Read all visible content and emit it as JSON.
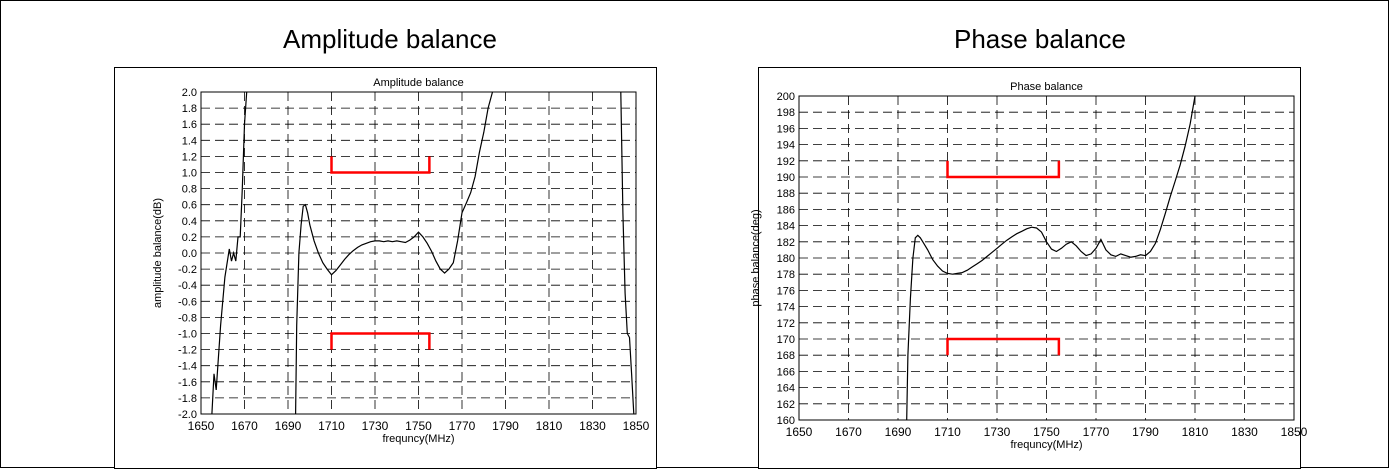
{
  "page": {
    "titles": [
      "Amplitude balance",
      "Phase balance"
    ]
  },
  "chart_data": [
    {
      "type": "line",
      "title": "Amplitude balance",
      "xlabel": "frequncy(MHz)",
      "ylabel": "amplitude balance(dB)",
      "xlim": [
        1650,
        1850
      ],
      "ylim": [
        -2.0,
        2.0
      ],
      "x_ticks": [
        1650,
        1670,
        1690,
        1710,
        1730,
        1750,
        1770,
        1790,
        1810,
        1830,
        1850
      ],
      "x_tick_labels": [
        "1650",
        "1670",
        "1690",
        "1710",
        "1730",
        "1750",
        "1770",
        "1790",
        "1810",
        "1830",
        "1850"
      ],
      "y_ticks": [
        2.0,
        1.8,
        1.6,
        1.4,
        1.2,
        1.0,
        0.8,
        0.6,
        0.4,
        0.2,
        0.0,
        -0.2,
        -0.4,
        -0.6,
        -0.8,
        -1.0,
        -1.2,
        -1.4,
        -1.6,
        -1.8,
        -2.0
      ],
      "y_tick_labels": [
        "2.0",
        "1.8",
        "1.6",
        "1.4",
        "1.2",
        "1.0",
        "0.8",
        "0.6",
        "0.4",
        "0.2",
        "0.0",
        "-0.2",
        "-0.4",
        "-0.6",
        "-0.8",
        "-1.0",
        "-1.2",
        "-1.4",
        "-1.6",
        "-1.8",
        "-2.0"
      ],
      "grid": true,
      "series": [
        {
          "color": "#000000",
          "segments": [
            {
              "x": [
                1655,
                1656,
                1657,
                1659,
                1661,
                1663,
                1664,
                1665,
                1666,
                1667,
                1668,
                1669,
                1670,
                1671
              ],
              "y": [
                -2.0,
                -1.5,
                -1.7,
                -0.9,
                -0.3,
                0.05,
                -0.1,
                0.0,
                -0.1,
                0.2,
                0.2,
                0.8,
                1.6,
                2.0
              ]
            },
            {
              "x": [
                1693.5,
                1694,
                1695,
                1696,
                1697,
                1698,
                1699,
                1700,
                1702,
                1704,
                1706,
                1708,
                1710,
                1712,
                1714,
                1716,
                1718,
                1720,
                1722,
                1724,
                1726,
                1728,
                1730,
                1732,
                1734,
                1736,
                1738,
                1740,
                1742,
                1744,
                1746,
                1748,
                1750,
                1752,
                1754,
                1756,
                1758,
                1760,
                1762,
                1764,
                1766,
                1768,
                1770,
                1772,
                1774,
                1776,
                1778,
                1780,
                1782,
                1784
              ],
              "y": [
                -2.0,
                -0.9,
                0.0,
                0.35,
                0.58,
                0.6,
                0.5,
                0.35,
                0.15,
                0.0,
                -0.12,
                -0.2,
                -0.27,
                -0.22,
                -0.15,
                -0.08,
                -0.02,
                0.03,
                0.07,
                0.1,
                0.12,
                0.14,
                0.15,
                0.15,
                0.14,
                0.15,
                0.14,
                0.15,
                0.14,
                0.13,
                0.16,
                0.2,
                0.26,
                0.2,
                0.12,
                0.02,
                -0.1,
                -0.2,
                -0.25,
                -0.2,
                -0.12,
                0.15,
                0.5,
                0.62,
                0.75,
                0.95,
                1.25,
                1.5,
                1.8,
                2.0
              ]
            },
            {
              "x": [
                1843,
                1844,
                1845,
                1846,
                1847,
                1848,
                1849
              ],
              "y": [
                2.0,
                0.5,
                -0.5,
                -1.0,
                -1.05,
                -1.5,
                -2.0
              ]
            }
          ]
        }
      ],
      "annotations": [
        {
          "type": "spec-limit",
          "color": "#ff0000",
          "x": [
            1710,
            1755
          ],
          "y": 1.0,
          "tick_to": 1.2
        },
        {
          "type": "spec-limit",
          "color": "#ff0000",
          "x": [
            1710,
            1755
          ],
          "y": -1.0,
          "tick_to": -1.2
        }
      ],
      "colors": {
        "spec": "#ff0000",
        "line": "#000000"
      }
    },
    {
      "type": "line",
      "title": "Phase balance",
      "xlabel": "frequncy(MHz)",
      "ylabel": "phase balance(deg)",
      "xlim": [
        1650,
        1850
      ],
      "ylim": [
        160,
        200
      ],
      "x_ticks": [
        1650,
        1670,
        1690,
        1710,
        1730,
        1750,
        1770,
        1790,
        1810,
        1830,
        1850
      ],
      "x_tick_labels": [
        "1650",
        "1670",
        "1690",
        "1710",
        "1730",
        "1750",
        "1770",
        "1790",
        "1810",
        "1830",
        "1850"
      ],
      "y_ticks": [
        200,
        198,
        196,
        194,
        192,
        190,
        188,
        186,
        184,
        182,
        180,
        178,
        176,
        174,
        172,
        170,
        168,
        166,
        164,
        162,
        160
      ],
      "y_tick_labels": [
        "200",
        "198",
        "196",
        "194",
        "192",
        "190",
        "188",
        "186",
        "184",
        "182",
        "180",
        "178",
        "176",
        "174",
        "172",
        "170",
        "168",
        "166",
        "164",
        "162",
        "160"
      ],
      "grid": true,
      "series": [
        {
          "color": "#000000",
          "segments": [
            {
              "x": [
                1693.5,
                1694,
                1695,
                1696,
                1697,
                1698,
                1699,
                1700,
                1702,
                1704,
                1706,
                1708,
                1710,
                1712,
                1714,
                1716,
                1718,
                1720,
                1722,
                1724,
                1726,
                1728,
                1730,
                1732,
                1734,
                1736,
                1738,
                1740,
                1742,
                1744,
                1746,
                1748,
                1750,
                1752,
                1754,
                1756,
                1758,
                1760,
                1762,
                1764,
                1766,
                1768,
                1770,
                1772,
                1774,
                1776,
                1778,
                1780,
                1782,
                1784,
                1786,
                1788,
                1790,
                1792,
                1794,
                1796,
                1798,
                1800,
                1802,
                1804,
                1806,
                1808,
                1810
              ],
              "y": [
                160,
                168,
                175,
                180,
                182.5,
                182.8,
                182.5,
                182.0,
                181.0,
                179.8,
                179.0,
                178.4,
                178.1,
                178.0,
                178.1,
                178.2,
                178.5,
                178.9,
                179.3,
                179.7,
                180.2,
                180.7,
                181.2,
                181.7,
                182.2,
                182.6,
                183.0,
                183.3,
                183.6,
                183.8,
                183.7,
                183.2,
                182.0,
                181.1,
                180.8,
                181.2,
                181.7,
                182.0,
                181.5,
                180.8,
                180.3,
                180.5,
                181.2,
                182.3,
                181.0,
                180.4,
                180.2,
                180.5,
                180.3,
                180.1,
                180.2,
                180.4,
                180.3,
                180.8,
                181.8,
                183.5,
                185.5,
                187.6,
                189.5,
                191.5,
                193.8,
                196.5,
                200
              ]
            }
          ]
        }
      ],
      "annotations": [
        {
          "type": "spec-limit",
          "color": "#ff0000",
          "x": [
            1710,
            1755
          ],
          "y": 190,
          "tick_to": 192
        },
        {
          "type": "spec-limit",
          "color": "#ff0000",
          "x": [
            1710,
            1755
          ],
          "y": 170,
          "tick_to": 168
        }
      ],
      "colors": {
        "spec": "#ff0000",
        "line": "#000000"
      }
    }
  ]
}
